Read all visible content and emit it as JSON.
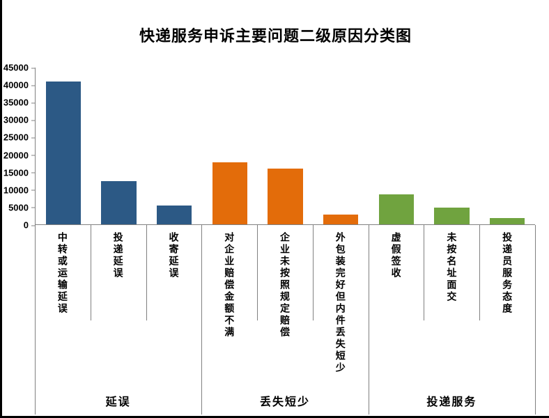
{
  "title": "快递服务申诉主要问题二级原因分类图",
  "chart_data": {
    "type": "bar",
    "title": "快递服务申诉主要问题二级原因分类图",
    "xlabel": "",
    "ylabel": "",
    "ylim": [
      0,
      45000
    ],
    "yticks": [
      0,
      5000,
      10000,
      15000,
      20000,
      25000,
      30000,
      35000,
      40000,
      45000
    ],
    "grid": false,
    "legend": "none",
    "axis_line_color": "#808080",
    "groups": [
      {
        "label": "延误",
        "color": "#2C5985",
        "categories": [
          "中转或运输延误",
          "投递延误",
          "收寄延误"
        ],
        "values": [
          41000,
          12500,
          5500
        ]
      },
      {
        "label": "丢失短少",
        "color": "#E36C0A",
        "categories": [
          "对企业赔偿金额不满",
          "企业未按照规定赔偿",
          "外包装完好但内件丢失短少"
        ],
        "values": [
          17800,
          16000,
          2800
        ]
      },
      {
        "label": "投递服务",
        "color": "#70A33F",
        "categories": [
          "虚假签收",
          "未按名址面交",
          "投递员服务态度"
        ],
        "values": [
          8700,
          4800,
          1800
        ]
      }
    ]
  }
}
